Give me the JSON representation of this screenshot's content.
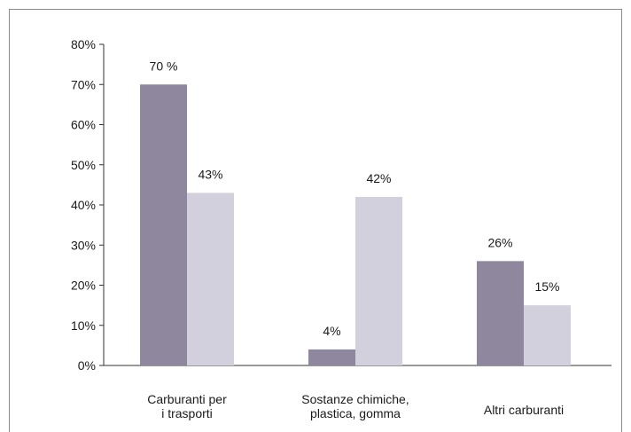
{
  "chart_data": {
    "type": "bar",
    "title": "",
    "xlabel": "",
    "ylabel": "",
    "ylim": [
      0,
      80
    ],
    "y_ticks": [
      "0%",
      "10%",
      "20%",
      "30%",
      "40%",
      "50%",
      "60%",
      "70%",
      "80%"
    ],
    "categories": [
      [
        "Carburanti per",
        "i trasporti"
      ],
      [
        "Sostanze chimiche,",
        "plastica, gomma"
      ],
      [
        "Altri carburanti"
      ]
    ],
    "series": [
      {
        "values": [
          70,
          4,
          26
        ],
        "labels": [
          "70 %",
          "4%",
          "26%"
        ],
        "color": "#8f879e"
      },
      {
        "values": [
          43,
          42,
          15
        ],
        "labels": [
          "43%",
          "42%",
          "15%"
        ],
        "color": "#d3d0dd"
      }
    ],
    "grid": false,
    "legend": "none",
    "colors": {
      "axis": "#333333",
      "frame": "#8a8a8a"
    }
  }
}
